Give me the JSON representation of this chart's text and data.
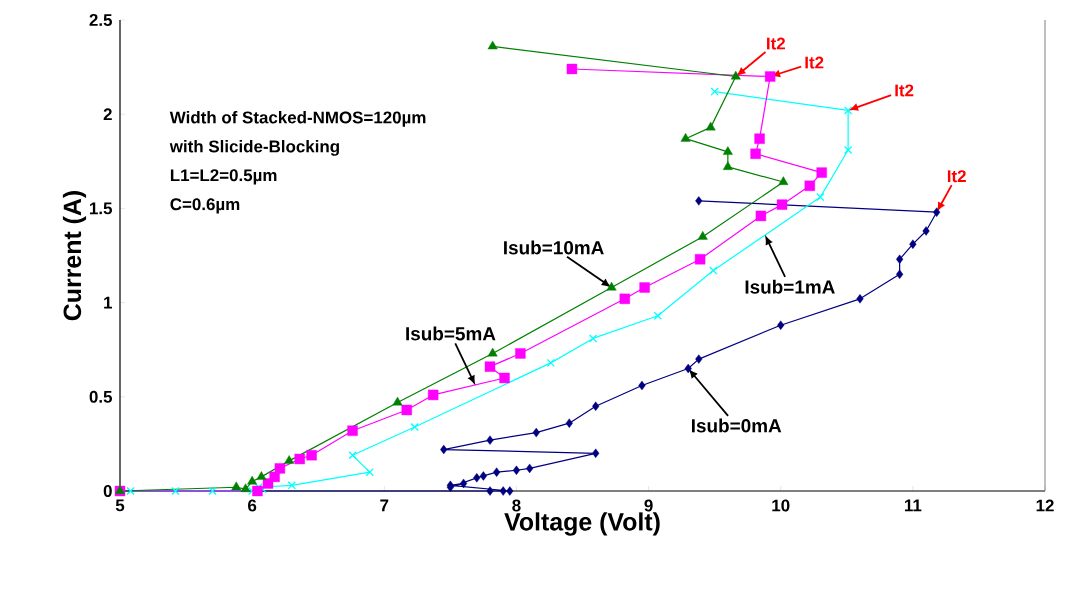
{
  "chart_data": {
    "type": "line",
    "xlabel": "Voltage (Volt)",
    "ylabel": "Current (A)",
    "xlim": [
      5,
      12
    ],
    "xticks": [
      5,
      6,
      7,
      8,
      9,
      10,
      11,
      12
    ],
    "ylim": [
      0,
      2.5
    ],
    "yticks": [
      0,
      {
        "value": 0.5,
        "label": "0.5"
      },
      1,
      {
        "value": 1.5,
        "label": "1.5"
      },
      2,
      {
        "value": 2.5,
        "label": "2.5"
      }
    ],
    "grid": false,
    "line_style": "solid",
    "series": [
      {
        "color": "#000080",
        "marker": "diamond",
        "x": [
          5.0,
          7.9,
          7.8,
          7.95,
          7.5,
          7.6,
          7.5,
          7.7,
          7.75,
          7.85,
          8.0,
          8.1,
          8.6,
          7.45,
          7.8,
          8.15,
          8.4,
          8.6,
          8.95,
          9.3,
          9.38,
          10.0,
          10.6,
          10.9,
          10.9,
          11.0,
          11.1,
          11.18,
          9.38
        ],
        "values": [
          0,
          0,
          0,
          0,
          0.03,
          0.04,
          0.02,
          0.07,
          0.08,
          0.1,
          0.11,
          0.12,
          0.2,
          0.22,
          0.27,
          0.31,
          0.36,
          0.45,
          0.56,
          0.65,
          0.7,
          0.88,
          1.02,
          1.15,
          1.23,
          1.31,
          1.38,
          1.48,
          1.54
        ]
      },
      {
        "color": "#00ffff",
        "marker": "cross",
        "x": [
          5.08,
          5.42,
          5.7,
          6.0,
          6.08,
          6.05,
          6.3,
          6.89,
          6.76,
          7.23,
          8.26,
          8.58,
          9.07,
          9.49,
          10.3,
          10.51,
          10.51,
          9.5
        ],
        "values": [
          0,
          0,
          0,
          0,
          0.01,
          0.02,
          0.03,
          0.1,
          0.19,
          0.34,
          0.68,
          0.81,
          0.93,
          1.17,
          1.56,
          1.81,
          2.02,
          2.12
        ]
      },
      {
        "color": "#ff00ff",
        "marker": "square",
        "x": [
          5.0,
          6.04,
          6.12,
          6.17,
          6.21,
          6.36,
          6.45,
          6.76,
          7.17,
          7.37,
          7.91,
          7.8,
          8.03,
          8.82,
          8.97,
          9.39,
          9.85,
          10.01,
          10.22,
          10.31,
          9.81,
          9.84,
          9.92,
          8.42
        ],
        "values": [
          0,
          0,
          0.04,
          0.075,
          0.12,
          0.17,
          0.19,
          0.32,
          0.43,
          0.51,
          0.6,
          0.66,
          0.73,
          1.02,
          1.08,
          1.23,
          1.46,
          1.52,
          1.62,
          1.69,
          1.79,
          1.87,
          2.2,
          2.24
        ]
      },
      {
        "color": "#008000",
        "marker": "triangle",
        "x": [
          5.0,
          5.88,
          5.95,
          6.0,
          6.07,
          6.28,
          7.1,
          7.82,
          8.72,
          9.41,
          10.02,
          9.6,
          9.6,
          9.28,
          9.47,
          9.66,
          7.82
        ],
        "values": [
          0,
          0.02,
          0.01,
          0.05,
          0.075,
          0.16,
          0.47,
          0.73,
          1.08,
          1.35,
          1.64,
          1.72,
          1.8,
          1.87,
          1.93,
          2.2,
          2.36
        ]
      }
    ],
    "annotations": [
      "Width of Stacked-NMOS=120µm",
      "with Slicide-Blocking",
      "L1=L2=0.5µm",
      "C=0.6µm",
      {
        "text": "Isub=10mA",
        "x": 8.72,
        "y": 1.08
      },
      {
        "text": "Isub=5mA",
        "x": 7.69,
        "y": 0.56
      },
      {
        "text": "Isub=1mA",
        "x": 9.88,
        "y": 1.36
      },
      {
        "text": "Isub=0mA",
        "x": 9.3,
        "y": 0.65
      },
      {
        "text": "It2",
        "x": 9.66,
        "y": 2.2
      },
      {
        "text": "It2",
        "x": 9.92,
        "y": 2.2
      },
      {
        "text": "It2",
        "x": 10.51,
        "y": 2.02
      },
      {
        "text": "It2",
        "x": 11.18,
        "y": 1.48
      }
    ]
  }
}
